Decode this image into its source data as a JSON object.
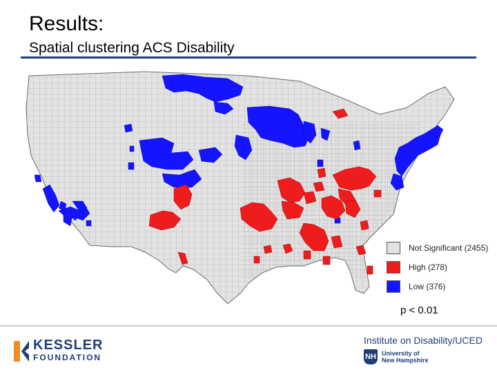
{
  "header": {
    "title": "Results:",
    "subtitle": "Spatial clustering ACS Disability"
  },
  "colors": {
    "not_significant": "#e3e3e3",
    "high": "#ee1c1c",
    "low": "#1414ff",
    "county_lines": "#9a9a9a",
    "accent": "#1f3d7a"
  },
  "legend": {
    "items": [
      {
        "key": "not_significant",
        "label": "Not Significant (2455)"
      },
      {
        "key": "high",
        "label": "High (278)"
      },
      {
        "key": "low",
        "label": "Low (376)"
      }
    ]
  },
  "significance": "p < 0.01",
  "footer": {
    "left_logo_line1": "KESSLER",
    "left_logo_line2": "FOUNDATION",
    "right_title": "Institute on Disability/UCED",
    "right_sub1": "University of",
    "right_sub2": "New Hampshire",
    "shield_glyph": "NH"
  }
}
